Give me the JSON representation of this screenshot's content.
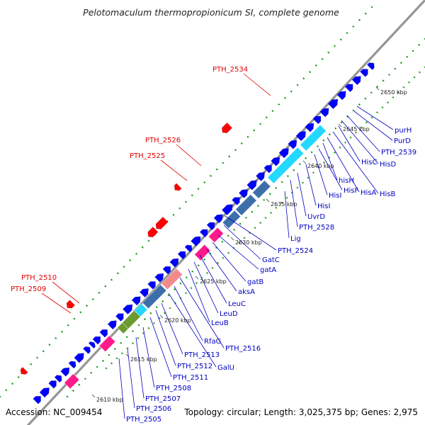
{
  "title": "Pelotomaculum thermopropionicum SI, complete genome",
  "footer": {
    "accession": "Accession: NC_009454",
    "summary": "Topology: circular; Length: 3,025,375 bp; Genes: 2,975"
  },
  "colors": {
    "forward_gene": "#0000ff",
    "reverse_gene": "#ff0000",
    "backbone": "#777777",
    "label_blue": "#0000c0",
    "label_red": "#e00000",
    "dots": "#00a000",
    "gene_pink": "#ff1a8c",
    "gene_cyan": "#22d8ff",
    "gene_steel": "#3c6faa",
    "gene_salmon": "#f28a8a",
    "gene_olive": "#6a9a30"
  },
  "kbp_ticks": [
    "2610 kbp",
    "2615 kbp",
    "2620 kbp",
    "2625 kbp",
    "2630 kbp",
    "2635 kbp",
    "2640 kbp",
    "2645 kbp",
    "2650 kbp"
  ],
  "blue_labels": [
    "purH",
    "PurD",
    "PTH_2539",
    "HisD",
    "HisC",
    "HisB",
    "HisA",
    "hisH",
    "HisF",
    "HisI",
    "HisI",
    "UvrD",
    "PTH_2528",
    "Lig",
    "PTH_2524",
    "GatC",
    "gatA",
    "gatB",
    "aksA",
    "LeuC",
    "LeuD",
    "LeuB",
    "PTH_2516",
    "RfaG",
    "GalU",
    "PTH_2513",
    "PTH_2512",
    "PTH_2511",
    "PTH_2508",
    "PTH_2507",
    "PTH_2506",
    "PTH_2505"
  ],
  "red_labels": [
    "PTH_2534",
    "PTH_2526",
    "PTH_2525",
    "PTH_2510",
    "PTH_2509"
  ]
}
